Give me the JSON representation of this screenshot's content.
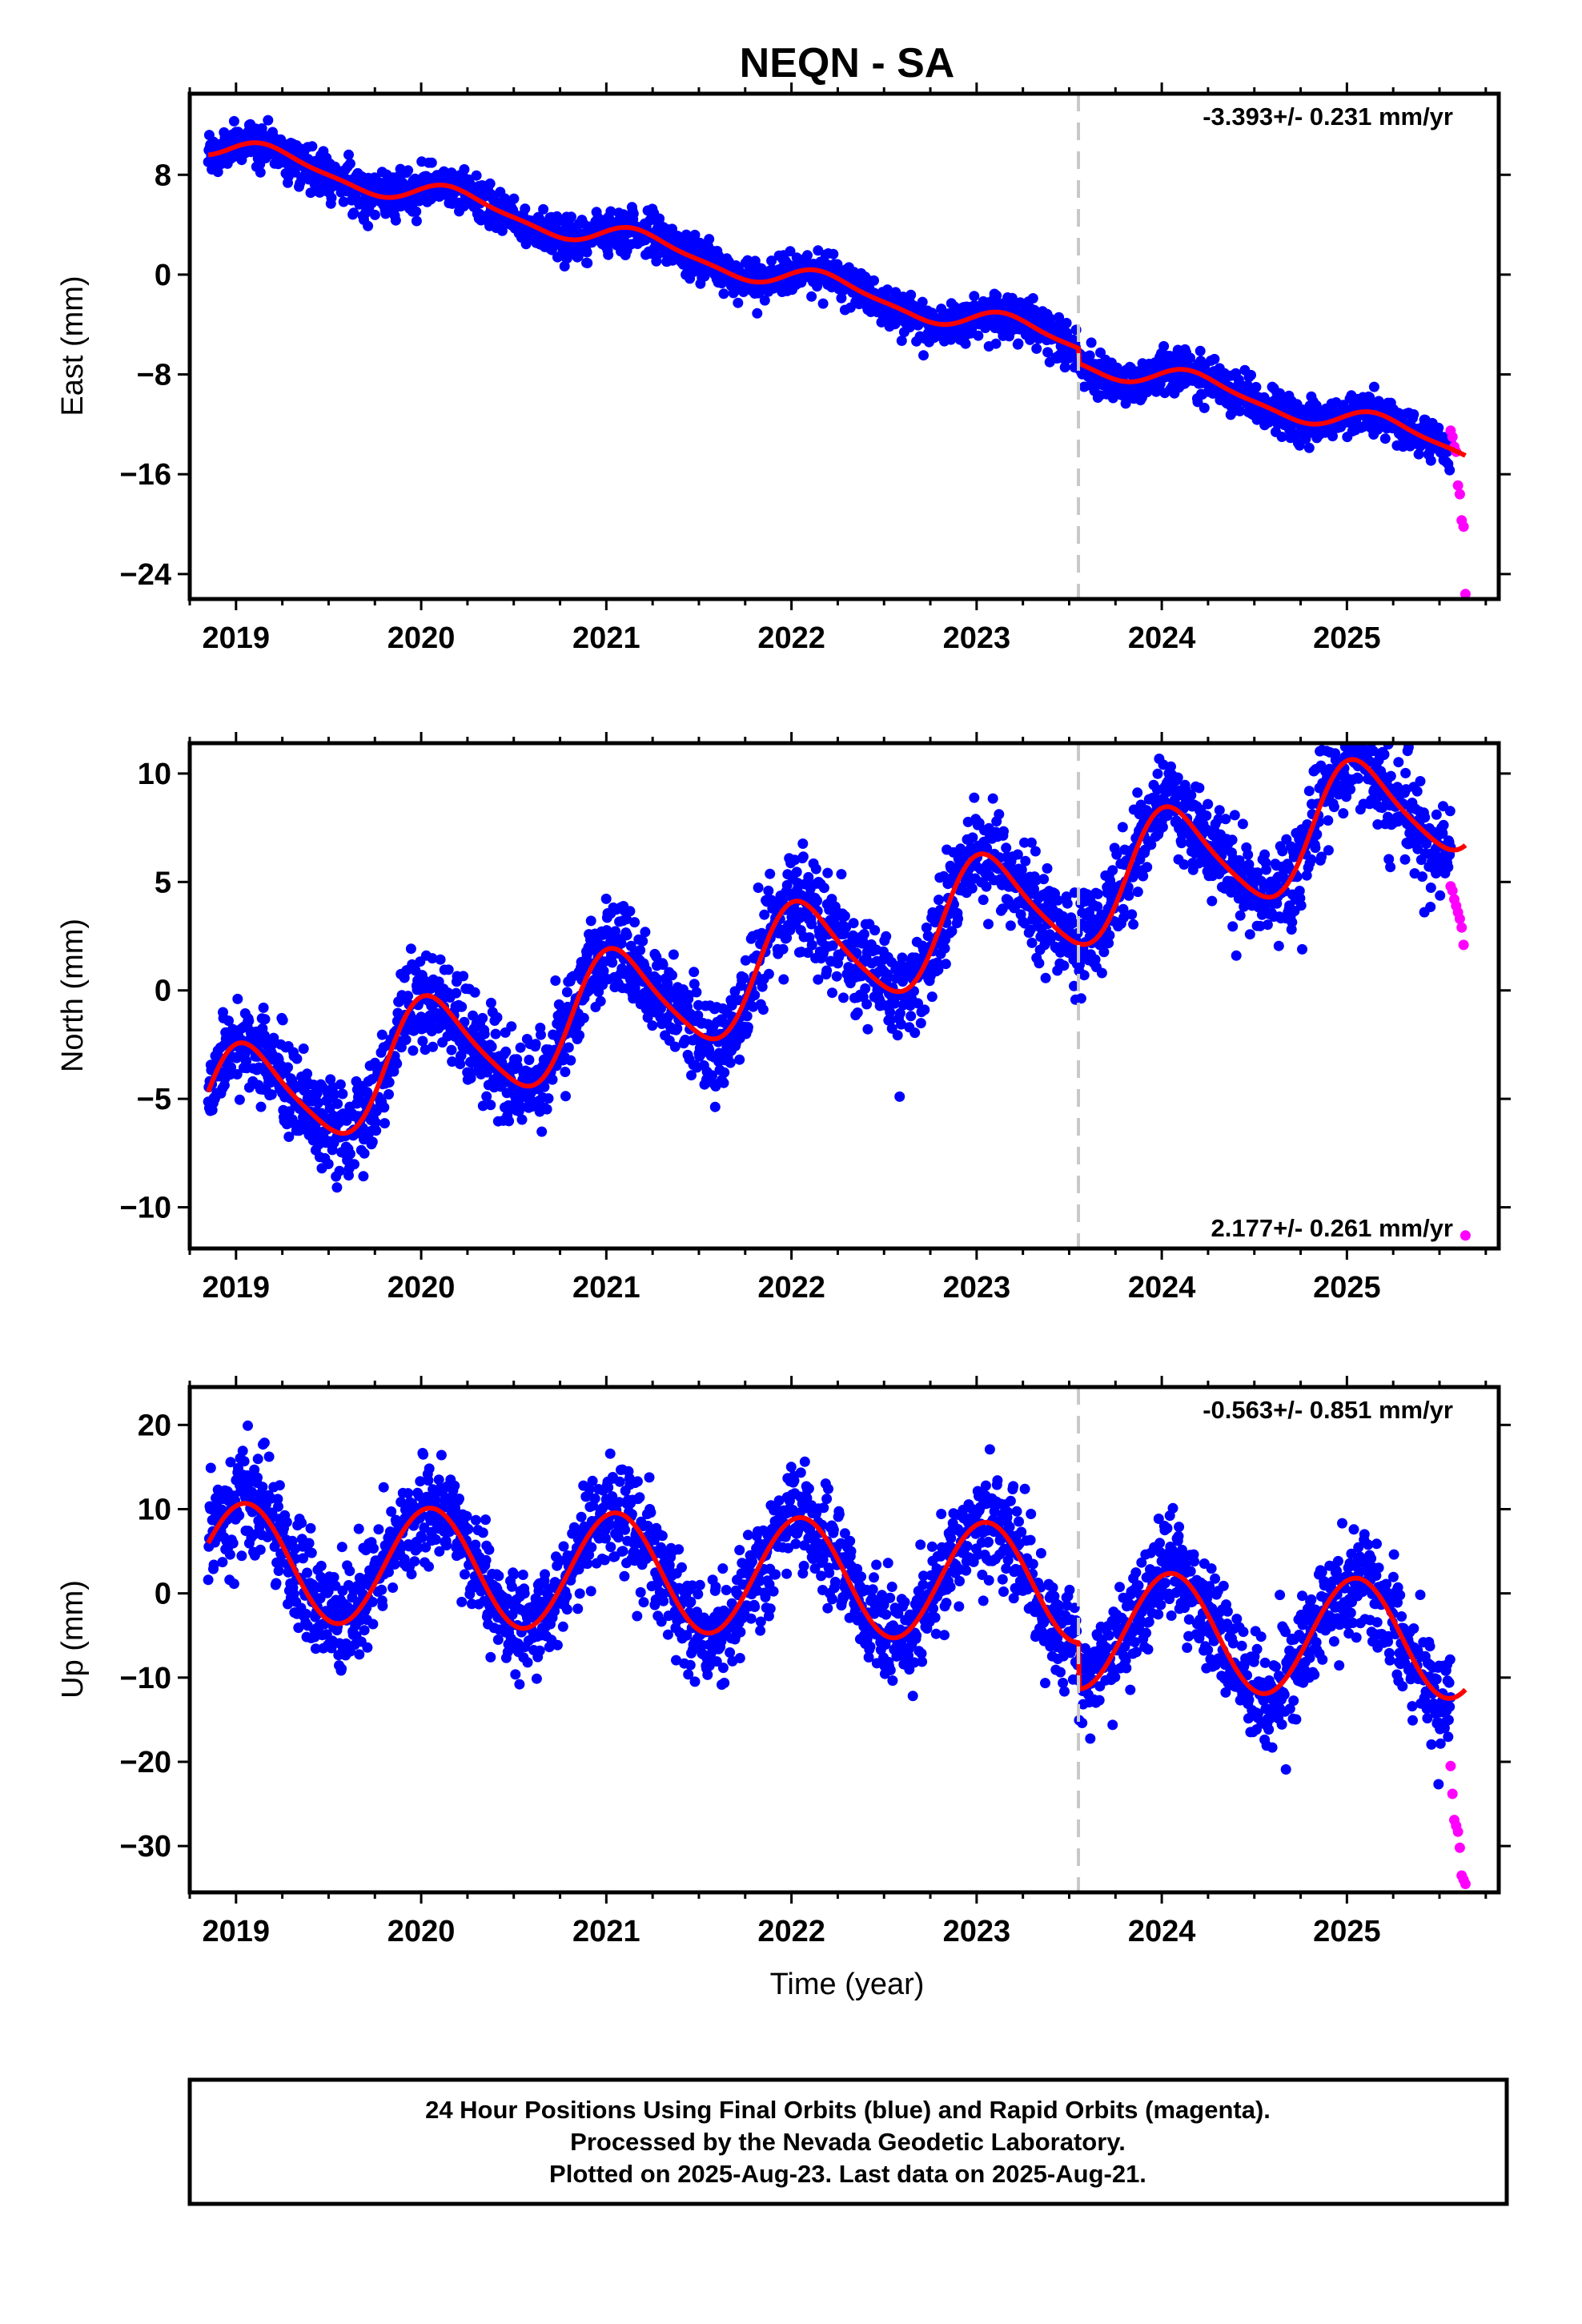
{
  "title": "NEQN - SA",
  "xlabel": "Time (year)",
  "caption": {
    "lines": [
      "24 Hour Positions Using Final Orbits (blue) and Rapid Orbits (magenta).",
      "Processed by the Nevada Geodetic Laboratory.",
      "Plotted on 2025-Aug-23. Last data on 2025-Aug-21."
    ]
  },
  "colors": {
    "final_orbits": "#0000ff",
    "rapid_orbits": "#ff00ff",
    "model_fit": "#ff0000",
    "equipment_change": "#c8c8c8",
    "frame": "#000000"
  },
  "chart_data": [
    {
      "type": "scatter",
      "component": "East",
      "ylabel": "East (mm)",
      "xlim": [
        2018.75,
        2025.82
      ],
      "ylim": [
        -26,
        14.5
      ],
      "yticks": [
        8,
        0,
        -8,
        -16,
        -24
      ],
      "ytick_labels": [
        "8",
        "0",
        "−8",
        "−16",
        "−24"
      ],
      "xticks": [
        2019,
        2020,
        2021,
        2022,
        2023,
        2024,
        2025
      ],
      "xtick_labels": [
        "2019",
        "2020",
        "2021",
        "2022",
        "2023",
        "2024",
        "2025"
      ],
      "rate": -3.393,
      "rate_label": "-3.393+/- 0.231 mm/yr",
      "rate_position": "top-right",
      "equipment_change_year": 2023.55,
      "model": {
        "start": 2018.85,
        "end": 2025.64,
        "intercept": 10.4,
        "seasonal": [
          {
            "period": 1.0,
            "amplitude": 0.95,
            "peak": 0.2
          },
          {
            "period": 0.5,
            "amplitude": 0.25,
            "peak": 0.1
          }
        ],
        "offsets": [
          {
            "year": 2023.55,
            "step": -1.2
          }
        ]
      },
      "final_orbits": {
        "start": 2018.85,
        "end": 2025.56,
        "scatter": 0.85
      },
      "rapid_orbits": {
        "start": 2025.56,
        "end": 2025.64,
        "x": [
          2025.56,
          2025.57,
          2025.58,
          2025.59,
          2025.6,
          2025.61,
          2025.62,
          2025.63,
          2025.64
        ],
        "y": [
          -12.5,
          -13.0,
          -13.8,
          -14.2,
          -16.9,
          -17.6,
          -19.7,
          -20.2,
          -25.6
        ]
      }
    },
    {
      "type": "scatter",
      "component": "North",
      "ylabel": "North (mm)",
      "xlim": [
        2018.75,
        2025.82
      ],
      "ylim": [
        -11.9,
        11.4
      ],
      "yticks": [
        10,
        5,
        0,
        -5,
        -10
      ],
      "ytick_labels": [
        "10",
        "5",
        "0",
        "−5",
        "−10"
      ],
      "xticks": [
        2019,
        2020,
        2021,
        2022,
        2023,
        2024,
        2025
      ],
      "xtick_labels": [
        "2019",
        "2020",
        "2021",
        "2022",
        "2023",
        "2024",
        "2025"
      ],
      "rate": 2.177,
      "rate_label": "2.177+/- 0.261 mm/yr",
      "rate_position": "bottom-right",
      "equipment_change_year": 2023.55,
      "model": {
        "start": 2018.85,
        "end": 2025.64,
        "intercept": -5.6,
        "seasonal": [
          {
            "period": 1.0,
            "amplitude": 2.6,
            "peak": 0.05
          },
          {
            "period": 0.5,
            "amplitude": 0.4,
            "peak": 0.45
          }
        ],
        "offsets": []
      },
      "final_orbits": {
        "start": 2018.85,
        "end": 2025.56,
        "scatter": 1.1
      },
      "rapid_orbits": {
        "start": 2025.56,
        "end": 2025.64,
        "x": [
          2025.56,
          2025.57,
          2025.58,
          2025.59,
          2025.6,
          2025.61,
          2025.62,
          2025.63,
          2025.64
        ],
        "y": [
          4.8,
          4.6,
          4.2,
          3.9,
          3.6,
          3.3,
          2.9,
          2.1,
          -11.3
        ]
      }
    },
    {
      "type": "scatter",
      "component": "Up",
      "ylabel": "Up (mm)",
      "xlim": [
        2018.75,
        2025.82
      ],
      "ylim": [
        -35.5,
        24.5
      ],
      "yticks": [
        20,
        10,
        0,
        -10,
        -20,
        -30
      ],
      "ytick_labels": [
        "20",
        "10",
        "0",
        "−10",
        "−20",
        "−30"
      ],
      "xticks": [
        2019,
        2020,
        2021,
        2022,
        2023,
        2024,
        2025
      ],
      "xtick_labels": [
        "2019",
        "2020",
        "2021",
        "2022",
        "2023",
        "2024",
        "2025"
      ],
      "rate": -0.563,
      "rate_label": "-0.563+/- 0.851 mm/yr",
      "rate_position": "top-right",
      "equipment_change_year": 2023.55,
      "model": {
        "start": 2018.85,
        "end": 2025.64,
        "intercept": 3.8,
        "seasonal": [
          {
            "period": 1.0,
            "amplitude": 7.0,
            "peak": 0.05
          }
        ],
        "offsets": [
          {
            "year": 2023.55,
            "step": -5.5
          }
        ]
      },
      "final_orbits": {
        "start": 2018.85,
        "end": 2025.56,
        "scatter": 3.2
      },
      "rapid_orbits": {
        "start": 2025.56,
        "end": 2025.64,
        "x": [
          2025.56,
          2025.57,
          2025.58,
          2025.59,
          2025.6,
          2025.61,
          2025.62,
          2025.63,
          2025.64
        ],
        "y": [
          -20.5,
          -23.8,
          -26.9,
          -27.6,
          -28.3,
          -30.2,
          -33.5,
          -34.0,
          -34.5
        ]
      }
    }
  ]
}
